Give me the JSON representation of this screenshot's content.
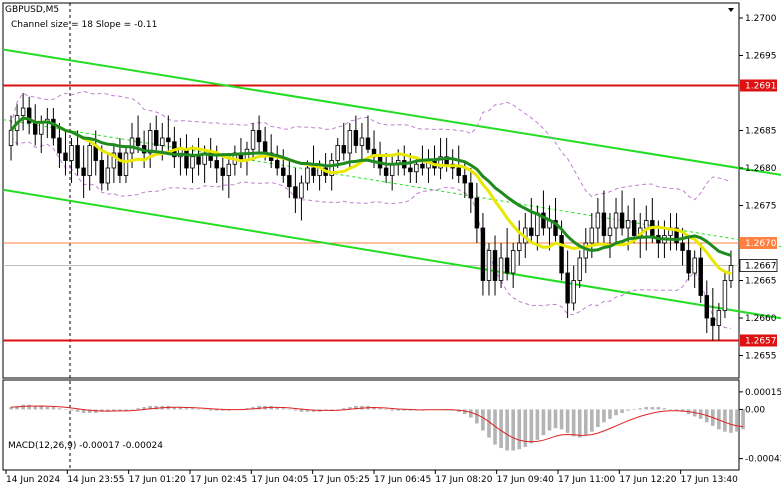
{
  "header": {
    "symbol": "GBPUSD,M5",
    "indicator": "Channel size = 18 Slope = -0.11"
  },
  "colors": {
    "background": "#ffffff",
    "bull_candle": "#000000",
    "bear_candle": "#000000",
    "channel": "#22dd22",
    "channel_mid": "#22dd22",
    "sma_fast": "#e8e800",
    "sma_slow": "#1f8a1f",
    "bollinger": "#c080d0",
    "resistance": "#dd1111",
    "support": "#dd1111",
    "level_orange": "#ff8040",
    "current_price_line": "#c0c0c0",
    "macd_hist": "#b4b4b4",
    "macd_signal": "#dd2222",
    "zone_fill": "#3e8d8d"
  },
  "chart_data": [
    {
      "type": "candlestick",
      "title": "",
      "x_labels": [
        "14 Jun 2024",
        "14 Jun 23:55",
        "17 Jun 01:20",
        "17 Jun 02:45",
        "17 Jun 04:05",
        "17 Jun 05:25",
        "17 Jun 06:45",
        "17 Jun 08:20",
        "17 Jun 09:40",
        "17 Jun 11:00",
        "17 Jun 12:20",
        "17 Jun 13:40"
      ],
      "y_ticks": [
        "1.2700",
        "1.2695",
        "1.2685",
        "1.2680",
        "1.2675",
        "1.2665",
        "1.2660",
        "1.2655"
      ],
      "ylim": [
        1.2652,
        1.2702
      ],
      "levels": {
        "resistance": {
          "value": 1.2691,
          "label": "1.2691"
        },
        "level_mid": {
          "value": 1.267,
          "label": "1.2670"
        },
        "current_price": {
          "value": 1.2667,
          "label": "1.2667"
        },
        "support": {
          "value": 1.2657,
          "label": "1.2657"
        }
      },
      "channel": {
        "upper": [
          [
            0,
            1.26958
          ],
          [
            150,
            1.26762
          ]
        ],
        "lower": [
          [
            0,
            1.26771
          ],
          [
            150,
            1.2657
          ]
        ]
      },
      "zone": {
        "x_from": 144,
        "x_to": 150,
        "y_from": 1.2655,
        "y_to": 1.26605
      },
      "candles": [
        [
          1.2683,
          1.2687,
          1.2681,
          1.2685
        ],
        [
          1.2685,
          1.26885,
          1.2683,
          1.2687
        ],
        [
          1.2687,
          1.269,
          1.2685,
          1.2688
        ],
        [
          1.2688,
          1.26895,
          1.26845,
          1.2686
        ],
        [
          1.2686,
          1.26885,
          1.2683,
          1.26845
        ],
        [
          1.26845,
          1.2687,
          1.2682,
          1.2686
        ],
        [
          1.2686,
          1.2688,
          1.2684,
          1.26865
        ],
        [
          1.26865,
          1.2688,
          1.2683,
          1.2684
        ],
        [
          1.2684,
          1.2686,
          1.268,
          1.2682
        ],
        [
          1.2682,
          1.2685,
          1.2679,
          1.2681
        ],
        [
          1.2681,
          1.2684,
          1.2678,
          1.2683
        ],
        [
          1.2683,
          1.2685,
          1.2679,
          1.268
        ],
        [
          1.268,
          1.2683,
          1.2676,
          1.2679
        ],
        [
          1.2679,
          1.2684,
          1.2677,
          1.2683
        ],
        [
          1.2683,
          1.2685,
          1.2679,
          1.2681
        ],
        [
          1.2681,
          1.2683,
          1.2677,
          1.2678
        ],
        [
          1.2678,
          1.2682,
          1.2677,
          1.268
        ],
        [
          1.268,
          1.2683,
          1.2678,
          1.2682
        ],
        [
          1.2682,
          1.2684,
          1.2678,
          1.2679
        ],
        [
          1.2679,
          1.2683,
          1.2678,
          1.2682
        ],
        [
          1.2682,
          1.2686,
          1.268,
          1.2684
        ],
        [
          1.2684,
          1.2687,
          1.2682,
          1.2683
        ],
        [
          1.2683,
          1.2685,
          1.268,
          1.2682
        ],
        [
          1.2682,
          1.2686,
          1.268,
          1.2685
        ],
        [
          1.2685,
          1.2687,
          1.2682,
          1.2683
        ],
        [
          1.2683,
          1.2686,
          1.2681,
          1.2684
        ],
        [
          1.2684,
          1.2687,
          1.2682,
          1.26835
        ],
        [
          1.26835,
          1.26855,
          1.268,
          1.26815
        ],
        [
          1.26815,
          1.2684,
          1.2679,
          1.26825
        ],
        [
          1.26825,
          1.26845,
          1.2679,
          1.268
        ],
        [
          1.268,
          1.2683,
          1.2678,
          1.26815
        ],
        [
          1.26815,
          1.2684,
          1.2679,
          1.26805
        ],
        [
          1.26805,
          1.2683,
          1.2678,
          1.2682
        ],
        [
          1.2682,
          1.2684,
          1.268,
          1.2681
        ],
        [
          1.2681,
          1.2683,
          1.2678,
          1.268
        ],
        [
          1.268,
          1.2682,
          1.2677,
          1.2679
        ],
        [
          1.2679,
          1.26815,
          1.2676,
          1.26805
        ],
        [
          1.26805,
          1.2683,
          1.2679,
          1.2682
        ],
        [
          1.2682,
          1.2684,
          1.268,
          1.2681
        ],
        [
          1.2681,
          1.26835,
          1.2679,
          1.26825
        ],
        [
          1.26825,
          1.2686,
          1.2681,
          1.2685
        ],
        [
          1.2685,
          1.2687,
          1.2682,
          1.26835
        ],
        [
          1.26835,
          1.26855,
          1.2681,
          1.2682
        ],
        [
          1.2682,
          1.26845,
          1.268,
          1.2681
        ],
        [
          1.2681,
          1.2683,
          1.2679,
          1.268
        ],
        [
          1.268,
          1.26825,
          1.2678,
          1.2679
        ],
        [
          1.2679,
          1.2681,
          1.2676,
          1.26775
        ],
        [
          1.26775,
          1.268,
          1.2674,
          1.2676
        ],
        [
          1.2676,
          1.2679,
          1.2673,
          1.2678
        ],
        [
          1.2678,
          1.2681,
          1.2677,
          1.268
        ],
        [
          1.268,
          1.2683,
          1.2678,
          1.2679
        ],
        [
          1.2679,
          1.2681,
          1.2677,
          1.268
        ],
        [
          1.268,
          1.2682,
          1.2678,
          1.2679
        ],
        [
          1.2679,
          1.2682,
          1.2677,
          1.2681
        ],
        [
          1.2681,
          1.2684,
          1.268,
          1.2683
        ],
        [
          1.2683,
          1.2686,
          1.2681,
          1.2682
        ],
        [
          1.2682,
          1.2686,
          1.268,
          1.2685
        ],
        [
          1.2685,
          1.2687,
          1.2682,
          1.2683
        ],
        [
          1.2683,
          1.2686,
          1.2681,
          1.2684
        ],
        [
          1.2684,
          1.2687,
          1.2682,
          1.26825
        ],
        [
          1.26825,
          1.2685,
          1.268,
          1.26815
        ],
        [
          1.26815,
          1.26835,
          1.2679,
          1.268
        ],
        [
          1.268,
          1.2682,
          1.2678,
          1.2679
        ],
        [
          1.2679,
          1.26815,
          1.2677,
          1.26805
        ],
        [
          1.26805,
          1.26825,
          1.2679,
          1.2681
        ],
        [
          1.2681,
          1.2683,
          1.2679,
          1.268
        ],
        [
          1.268,
          1.2682,
          1.2678,
          1.26795
        ],
        [
          1.26795,
          1.26815,
          1.2678,
          1.26805
        ],
        [
          1.26805,
          1.2683,
          1.2679,
          1.268
        ],
        [
          1.268,
          1.26825,
          1.2678,
          1.2681
        ],
        [
          1.2681,
          1.2683,
          1.2679,
          1.268
        ],
        [
          1.268,
          1.2684,
          1.26785,
          1.26815
        ],
        [
          1.26815,
          1.2684,
          1.26795,
          1.26805
        ],
        [
          1.26805,
          1.26825,
          1.26785,
          1.268
        ],
        [
          1.268,
          1.2683,
          1.2678,
          1.2679
        ],
        [
          1.2679,
          1.2681,
          1.2676,
          1.2678
        ],
        [
          1.2678,
          1.268,
          1.2674,
          1.2676
        ],
        [
          1.2676,
          1.2678,
          1.267,
          1.2672
        ],
        [
          1.2672,
          1.2674,
          1.2663,
          1.2665
        ],
        [
          1.2665,
          1.267,
          1.2663,
          1.2669
        ],
        [
          1.2669,
          1.2671,
          1.2663,
          1.2665
        ],
        [
          1.2665,
          1.267,
          1.2664,
          1.2668
        ],
        [
          1.2668,
          1.2672,
          1.2665,
          1.2666
        ],
        [
          1.2666,
          1.267,
          1.2664,
          1.2669
        ],
        [
          1.2669,
          1.2673,
          1.2667,
          1.267
        ],
        [
          1.267,
          1.2674,
          1.2668,
          1.2672
        ],
        [
          1.2672,
          1.2676,
          1.267,
          1.2671
        ],
        [
          1.2671,
          1.2675,
          1.2669,
          1.2674
        ],
        [
          1.2674,
          1.2677,
          1.2671,
          1.2672
        ],
        [
          1.2672,
          1.2675,
          1.2669,
          1.2673
        ],
        [
          1.2673,
          1.2676,
          1.267,
          1.2671
        ],
        [
          1.2671,
          1.2673,
          1.2665,
          1.2666
        ],
        [
          1.2666,
          1.2669,
          1.266,
          1.2662
        ],
        [
          1.2662,
          1.2667,
          1.2661,
          1.2665
        ],
        [
          1.2665,
          1.2669,
          1.2664,
          1.2668
        ],
        [
          1.2668,
          1.2672,
          1.2666,
          1.267
        ],
        [
          1.267,
          1.2674,
          1.2668,
          1.2672
        ],
        [
          1.2672,
          1.2676,
          1.267,
          1.2674
        ],
        [
          1.2674,
          1.2677,
          1.267,
          1.2671
        ],
        [
          1.2671,
          1.2674,
          1.2668,
          1.2672
        ],
        [
          1.2672,
          1.2676,
          1.267,
          1.2674
        ],
        [
          1.2674,
          1.2677,
          1.2671,
          1.2672
        ],
        [
          1.2672,
          1.2675,
          1.2669,
          1.2673
        ],
        [
          1.2673,
          1.2676,
          1.267,
          1.2671
        ],
        [
          1.2671,
          1.2674,
          1.2668,
          1.2672
        ],
        [
          1.2672,
          1.2675,
          1.2669,
          1.2673
        ],
        [
          1.2673,
          1.2676,
          1.267,
          1.2671
        ],
        [
          1.2671,
          1.2673,
          1.2668,
          1.267
        ],
        [
          1.267,
          1.2673,
          1.2668,
          1.2671
        ],
        [
          1.2671,
          1.2674,
          1.2669,
          1.2672
        ],
        [
          1.2672,
          1.2674,
          1.2669,
          1.267
        ],
        [
          1.267,
          1.2672,
          1.2667,
          1.2669
        ],
        [
          1.2669,
          1.2671,
          1.2665,
          1.2666
        ],
        [
          1.2666,
          1.2669,
          1.2664,
          1.2668
        ],
        [
          1.2668,
          1.267,
          1.2662,
          1.2663
        ],
        [
          1.2663,
          1.2665,
          1.2658,
          1.266
        ],
        [
          1.266,
          1.2664,
          1.2657,
          1.2659
        ],
        [
          1.2659,
          1.2662,
          1.2657,
          1.2661
        ],
        [
          1.2661,
          1.2666,
          1.266,
          1.2665
        ],
        [
          1.2665,
          1.2669,
          1.2664,
          1.2667
        ]
      ],
      "macd": {
        "label": "MACD(12,26,9) -0.00017 -0.00024",
        "y_ticks": [
          "0.00015",
          "0.00",
          "-0.00042"
        ],
        "ylim": [
          -0.0005,
          0.0002
        ],
        "hist": [
          2e-05,
          3e-05,
          4e-05,
          4e-05,
          3e-05,
          3e-05,
          2e-05,
          2e-05,
          1e-05,
          0.0,
          -1e-05,
          -2e-05,
          -3e-05,
          -3e-05,
          -3e-05,
          -2e-05,
          -2e-05,
          -1e-05,
          -1e-05,
          -1e-05,
          0.0,
          1e-05,
          2e-05,
          3e-05,
          3e-05,
          3e-05,
          3e-05,
          2e-05,
          2e-05,
          1e-05,
          1e-05,
          0.0,
          0.0,
          -1e-05,
          -1e-05,
          -1e-05,
          -1e-05,
          0.0,
          0.0,
          1e-05,
          2e-05,
          3e-05,
          3e-05,
          3e-05,
          2e-05,
          1e-05,
          0.0,
          -1e-05,
          -2e-05,
          -2e-05,
          -2e-05,
          -2e-05,
          -1e-05,
          -1e-05,
          0.0,
          1e-05,
          2e-05,
          3e-05,
          3e-05,
          3e-05,
          2e-05,
          1e-05,
          0.0,
          -1e-05,
          -1e-05,
          -1e-05,
          -1e-05,
          -1e-05,
          -1e-05,
          0.0,
          0.0,
          0.0,
          0.0,
          -1e-05,
          -2e-05,
          -4e-05,
          -7e-05,
          -0.00012,
          -0.00018,
          -0.00024,
          -0.0003,
          -0.00033,
          -0.00035,
          -0.00035,
          -0.00034,
          -0.00032,
          -0.00029,
          -0.00026,
          -0.00022,
          -0.00018,
          -0.00016,
          -0.00017,
          -0.0002,
          -0.00023,
          -0.00024,
          -0.00022,
          -0.00019,
          -0.00015,
          -0.00011,
          -8e-05,
          -5e-05,
          -3e-05,
          -1e-05,
          0.0,
          1e-05,
          2e-05,
          2e-05,
          2e-05,
          1e-05,
          0.0,
          -1e-05,
          -2e-05,
          -4e-05,
          -6e-05,
          -8e-05,
          -0.00011,
          -0.00014,
          -0.00017,
          -0.00019,
          -0.0002,
          -0.00019,
          -0.00017
        ]
      }
    }
  ]
}
